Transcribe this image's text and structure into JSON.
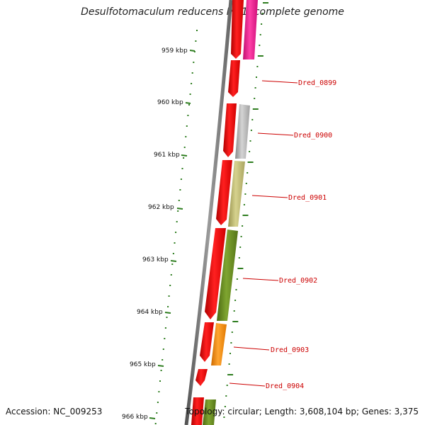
{
  "title": "Desulfotomaculum reducens MI-1, complete genome",
  "accession_label": "Accession: NC_009253",
  "topology_label": "Topology: circular; Length: 3,608,104 bp; Genes: 3,375",
  "kbp_ticks": [
    "959 kbp",
    "960 kbp",
    "961 kbp",
    "962 kbp",
    "963 kbp",
    "964 kbp",
    "965 kbp",
    "966 kbp"
  ],
  "gene_labels": [
    "Dred_0899",
    "Dred_0900",
    "Dred_0901",
    "Dred_0902",
    "Dred_0903",
    "Dred_0904"
  ],
  "colors": {
    "forward_cds": "#ff0000",
    "gene_0899_partner": "#ff1493",
    "gene_0900": "#b8b8b8",
    "gene_0901": "#c2bd72",
    "gene_0902": "#6b8e23",
    "gene_0903": "#ff8c00",
    "tick_marks": "#2e7d1f",
    "backbone": "#808080",
    "label_lines": "#cc0000"
  }
}
